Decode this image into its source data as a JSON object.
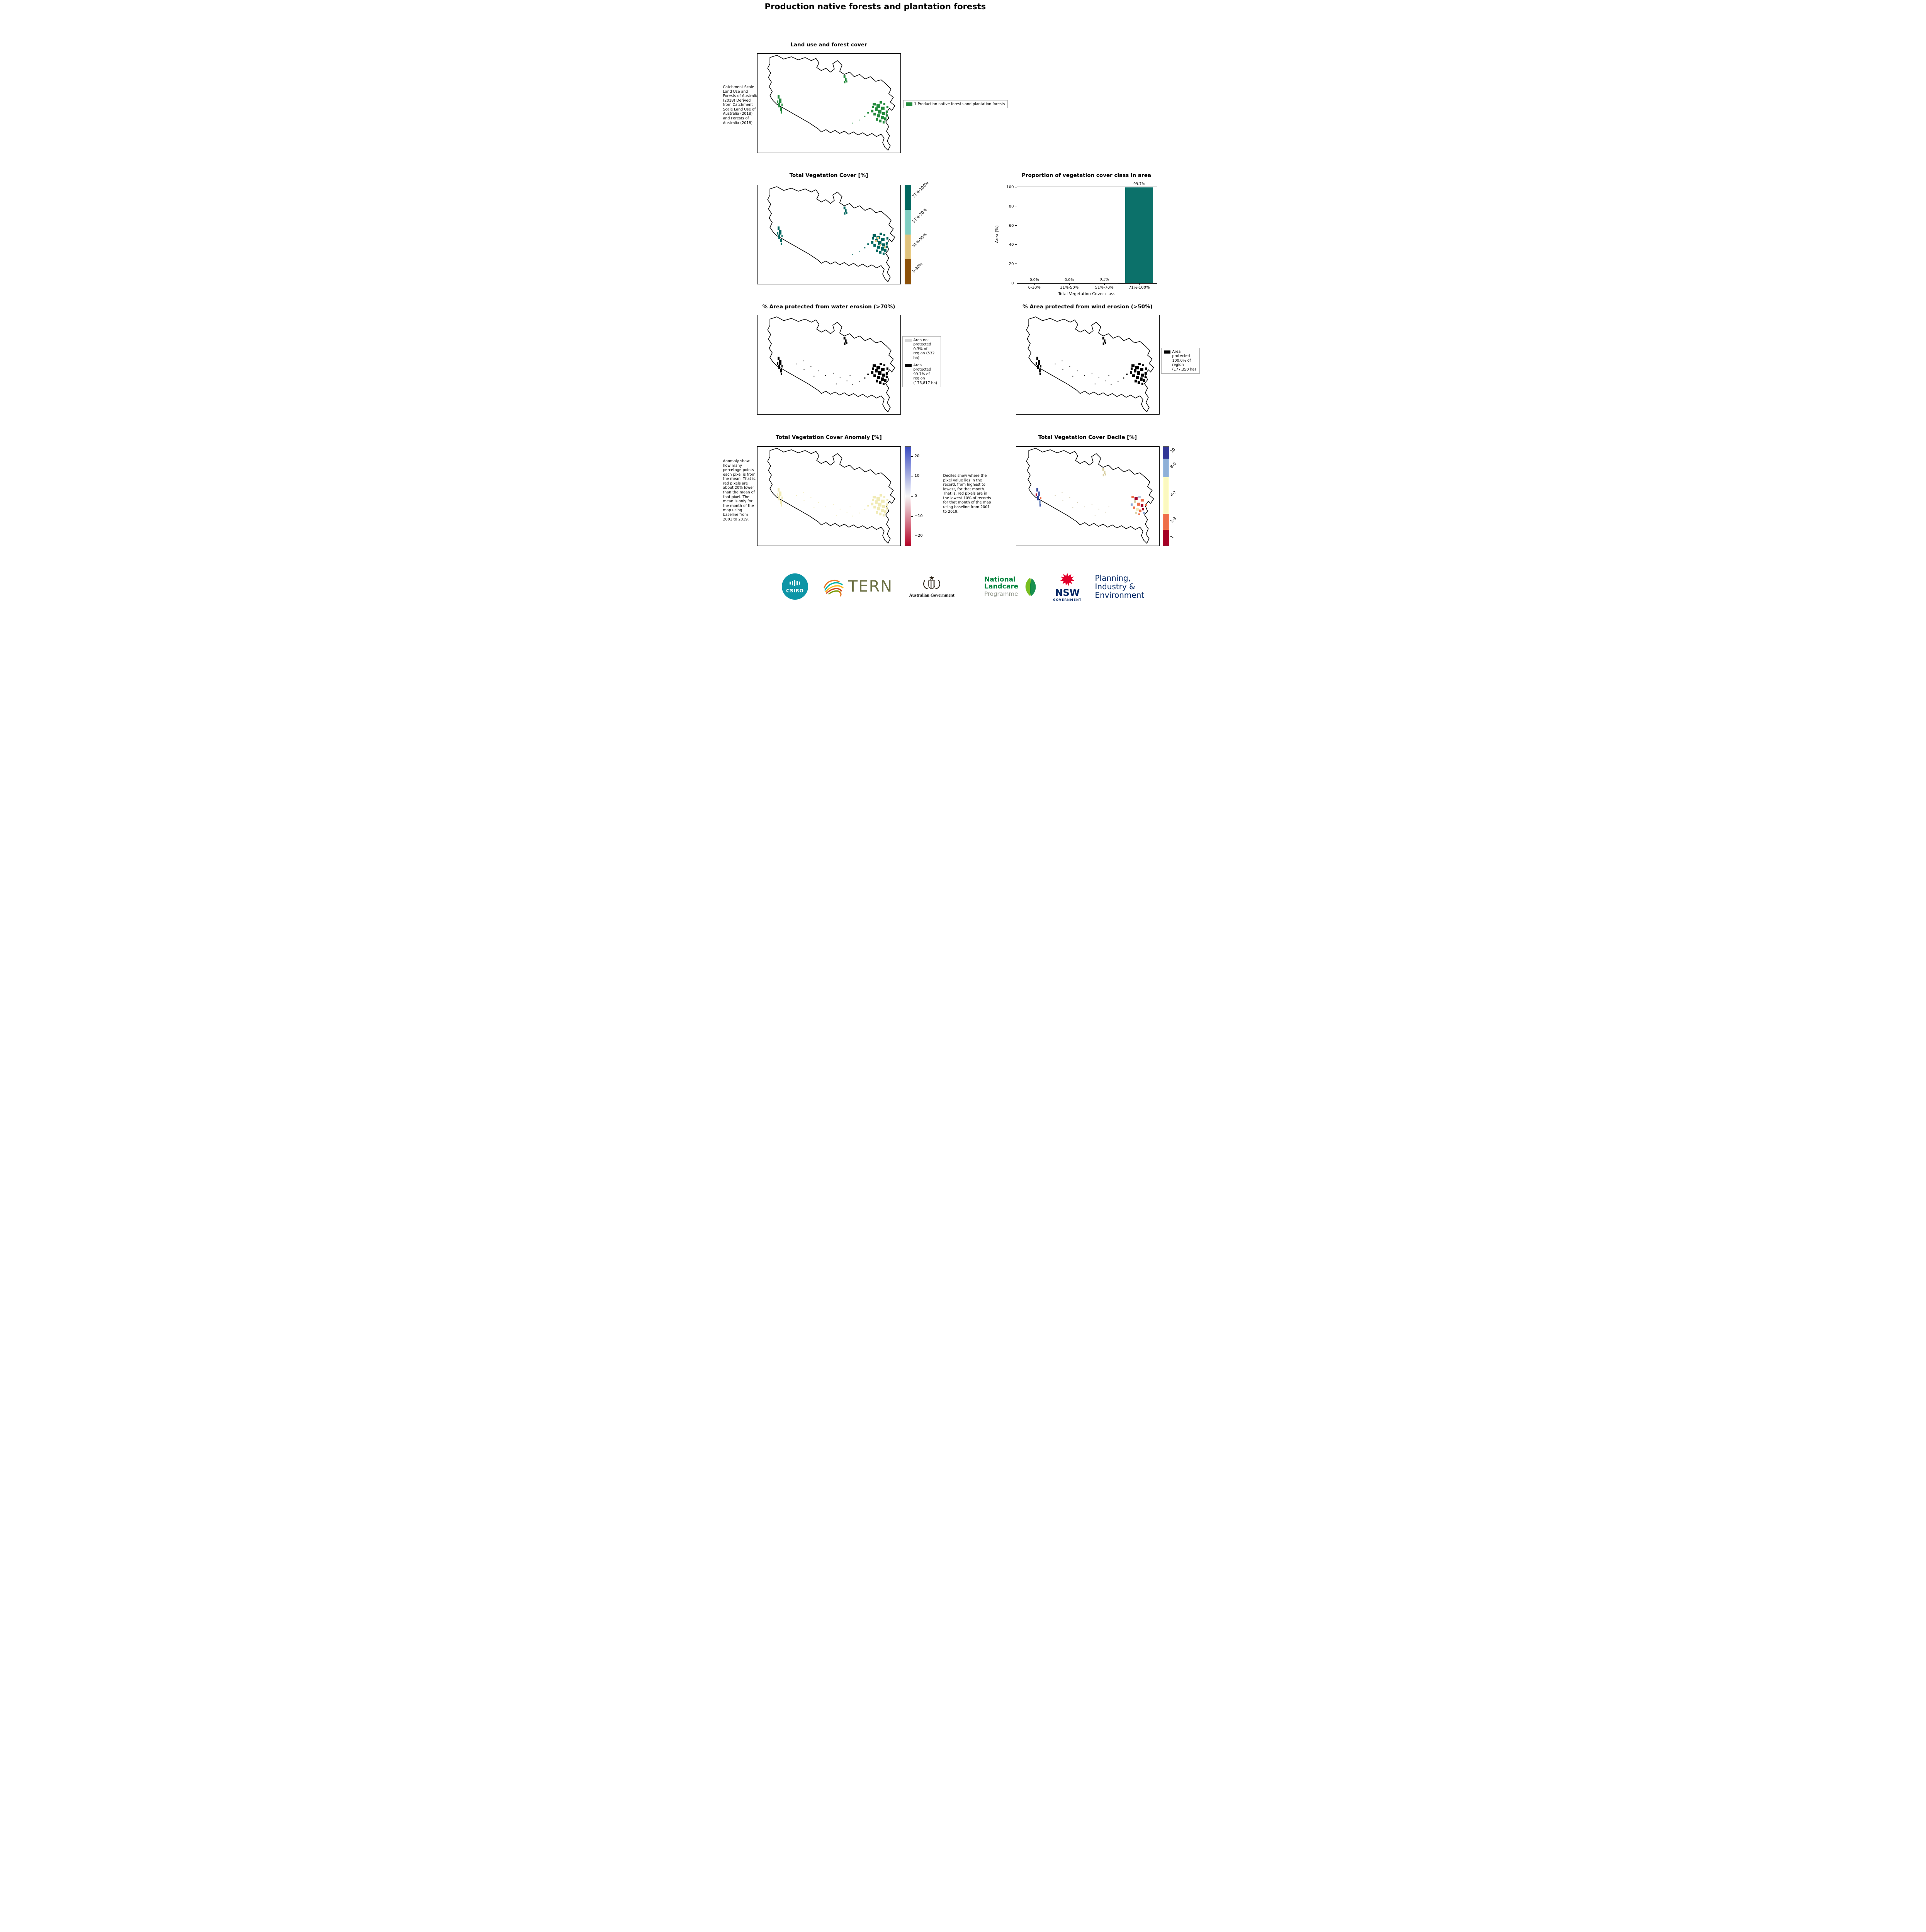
{
  "page": {
    "title": "Production native forests and plantation forests"
  },
  "land_use": {
    "title": "Land use and forest cover",
    "note": "Catchment Scale Land Use and Forests of Australia (2018) Derived from Catchment Scale Land Use of Australia (2018) and Forests of Australia (2018)",
    "legend": {
      "label": "1 Production native forests and plantation forests",
      "color": "#228b3c"
    }
  },
  "tvc": {
    "title": "Total Vegetation Cover [%]",
    "classes": [
      {
        "label": "71%-100%",
        "color": "#01665e"
      },
      {
        "label": "51%-70%",
        "color": "#80cdc1"
      },
      {
        "label": "31%-50%",
        "color": "#dfc27d"
      },
      {
        "label": "0-30%",
        "color": "#8c510a"
      }
    ]
  },
  "proportion": {
    "title": "Proportion of vegetation cover class in area",
    "chart_data": {
      "type": "bar",
      "categories": [
        "0-30%",
        "31%-50%",
        "51%-70%",
        "71%-100%"
      ],
      "values": [
        0.0,
        0.0,
        0.3,
        99.7
      ],
      "value_labels": [
        "0.0%",
        "0.0%",
        "0.3%",
        "99.7%"
      ],
      "xlabel": "Total Vegetation Cover class",
      "ylabel": "Area (%)",
      "ylim": [
        0,
        100
      ],
      "yticks": [
        "0",
        "20",
        "40",
        "60",
        "80",
        "100"
      ],
      "bar_color": "#0c716a",
      "grid": false,
      "legend_position": "none"
    }
  },
  "water": {
    "title": "% Area protected from water erosion (>70%)",
    "legend": [
      {
        "label": "Area not protected 0.3% of region (532 ha)",
        "color": "#d9d9d9"
      },
      {
        "label": "Area protected 99.7% of region (176,817 ha)",
        "color": "#000000"
      }
    ]
  },
  "wind": {
    "title": "% Area protected from wind erosion (>50%)",
    "legend": [
      {
        "label": "Area protected 100.0% of region (177,350 ha)",
        "color": "#000000"
      }
    ]
  },
  "anomaly": {
    "title": "Total Vegetation Cover Anomaly [%]",
    "note": "Anomaly show how many percetage points each pixel is from the mean. That is, red pixels are about 20% lower than the mean of that pixel. The mean is only for the month of the map using baseline from 2001 to 2019.",
    "colorbar": {
      "ticks": [
        "20",
        "10",
        "0",
        "−10",
        "−20"
      ],
      "top_color": "#3b4cc0",
      "mid_color": "#f6f6f6",
      "bottom_color": "#b40426"
    },
    "pixel_color": "#f1ebb6"
  },
  "decile": {
    "title": "Total Vegetation Cover Decile [%]",
    "note": "Deciles show where the pixel value lies in the record, from highest to lowest, for that month. That is, red pixels are in the lowest 10% of records for that month of the map using baseline from 2001 to 2019.",
    "classes": [
      {
        "label": "10",
        "color": "#313695"
      },
      {
        "label": "8-9",
        "color": "#8fb0d7"
      },
      {
        "label": "4-7",
        "color": "#fbf8c0"
      },
      {
        "label": "2-3",
        "color": "#ed6f4a"
      },
      {
        "label": "1",
        "color": "#a50026"
      }
    ]
  },
  "footer": {
    "csiro": {
      "label": "CSIRO",
      "color": "#0d95a6"
    },
    "tern": {
      "label": "TERN",
      "color": "#6d7145"
    },
    "aus_gov": {
      "label": "Australian Government"
    },
    "landcare": {
      "line1": "National",
      "line2": "Landcare",
      "line3": "Programme",
      "green": "#00843d",
      "light_green": "#78be20",
      "gray": "#8a8f83"
    },
    "nsw": {
      "label": "NSW",
      "sub": "GOVERNMENT",
      "red": "#e4002b",
      "navy": "#002664"
    },
    "dpie": {
      "line1": "Planning,",
      "line2": "Industry &",
      "line3": "Environment",
      "navy": "#002664"
    }
  }
}
